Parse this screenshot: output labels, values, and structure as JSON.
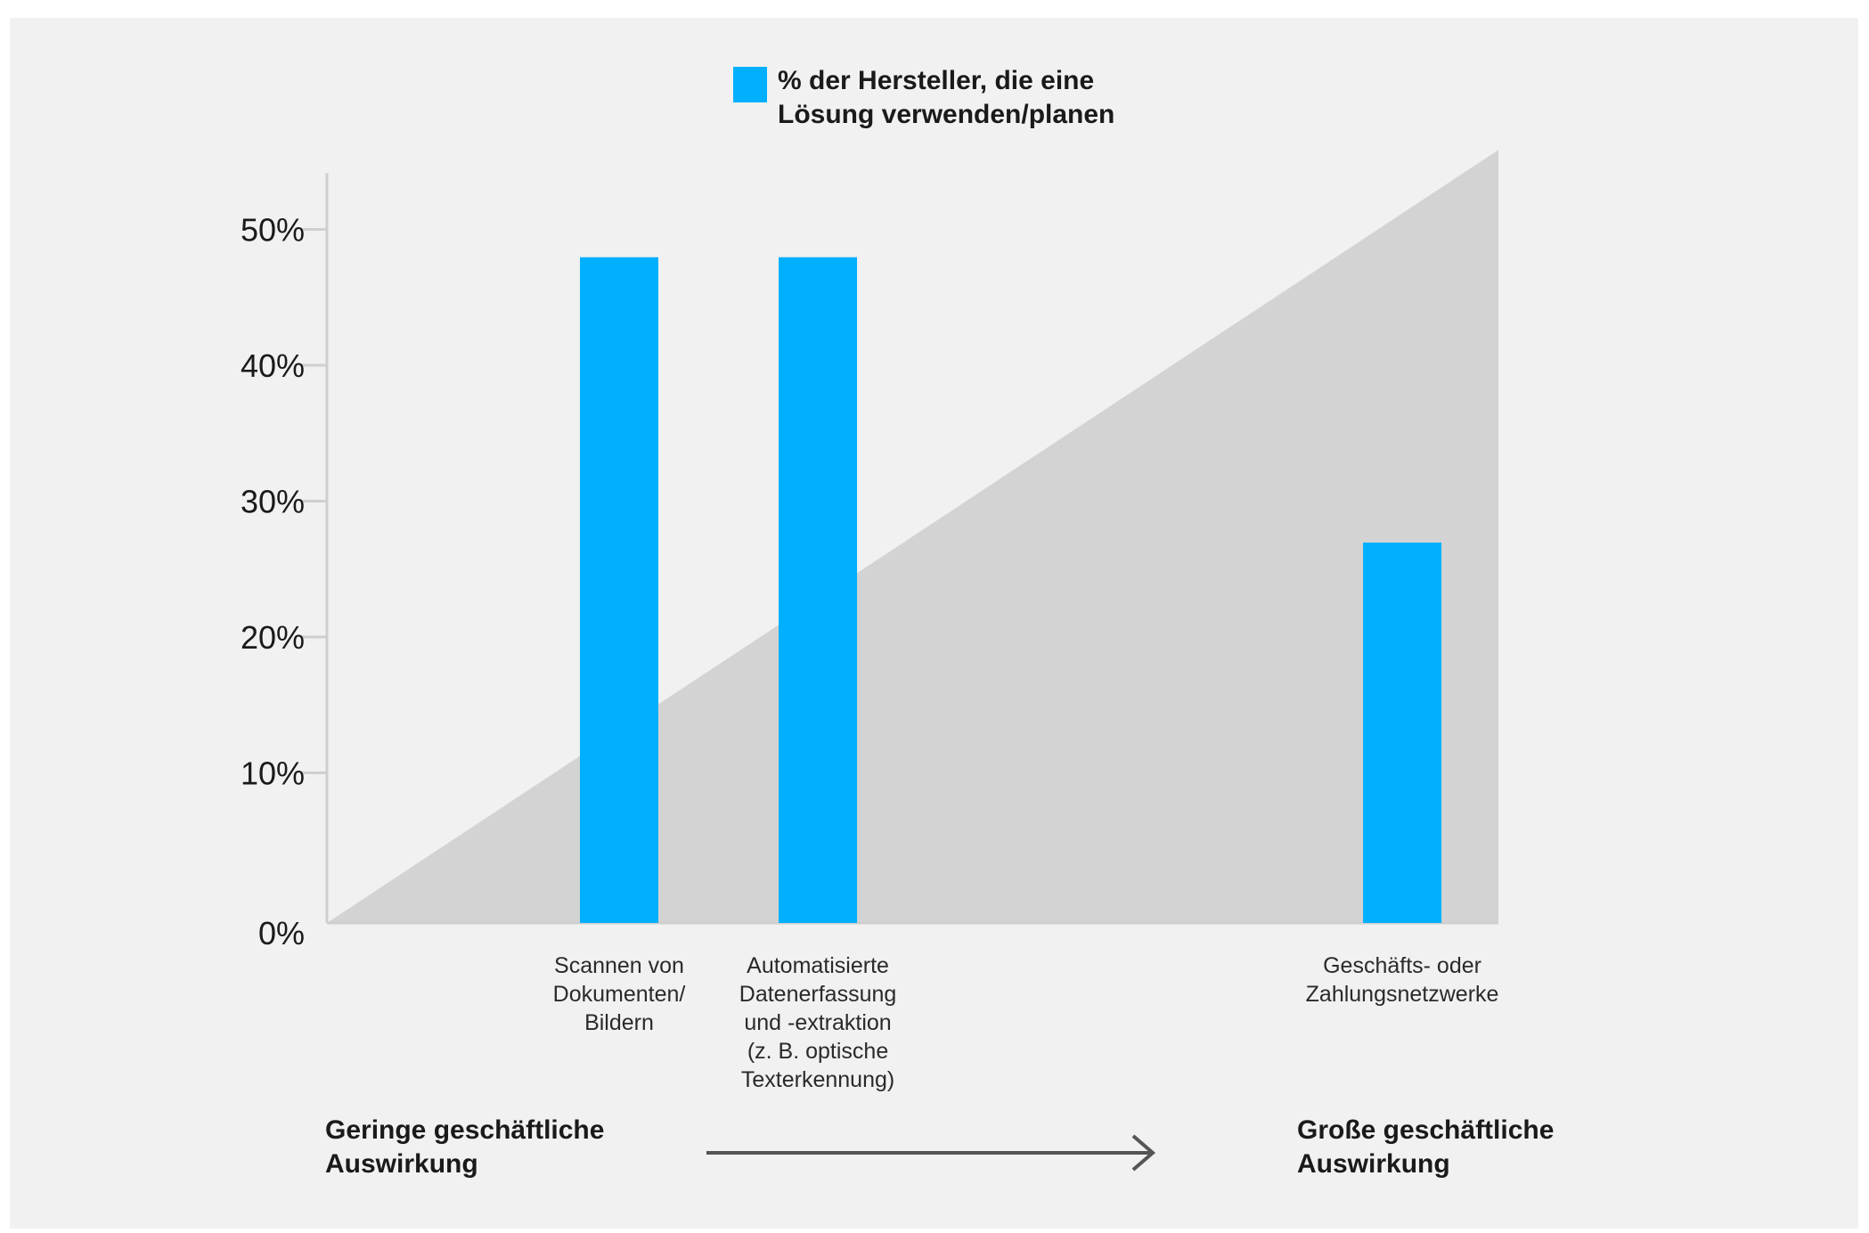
{
  "chart_data": {
    "type": "bar",
    "legend": [
      "% der Hersteller, die eine",
      "Lösung verwenden/planen"
    ],
    "categories": [
      [
        "Scannen von",
        "Dokumenten/",
        "Bildern"
      ],
      [
        "Automatisierte",
        "Datenerfassung",
        "und -extraktion",
        "(z. B. optische",
        "Texterkennung)"
      ],
      [
        "Geschäfts- oder",
        "Zahlungsnetzwerke"
      ]
    ],
    "category_positions": [
      0.25,
      0.42,
      0.92
    ],
    "values": [
      49,
      49,
      28
    ],
    "ylim": [
      0,
      55
    ],
    "yticks": [
      0,
      10,
      20,
      30,
      40,
      50
    ],
    "ytick_labels": [
      "0%",
      "10%",
      "20%",
      "30%",
      "40%",
      "50%"
    ],
    "grid": false,
    "legend_position": "top-center",
    "x_annotation": {
      "left": [
        "Geringe geschäftliche",
        "Auswirkung"
      ],
      "right": [
        "Große geschäftliche",
        "Auswirkung"
      ]
    },
    "colors": {
      "bar": "#00b0ff",
      "impact_area": "#d3d3d3",
      "background": "#f1f1f1",
      "axis": "#cfcfcf",
      "arrow": "#555555"
    }
  }
}
